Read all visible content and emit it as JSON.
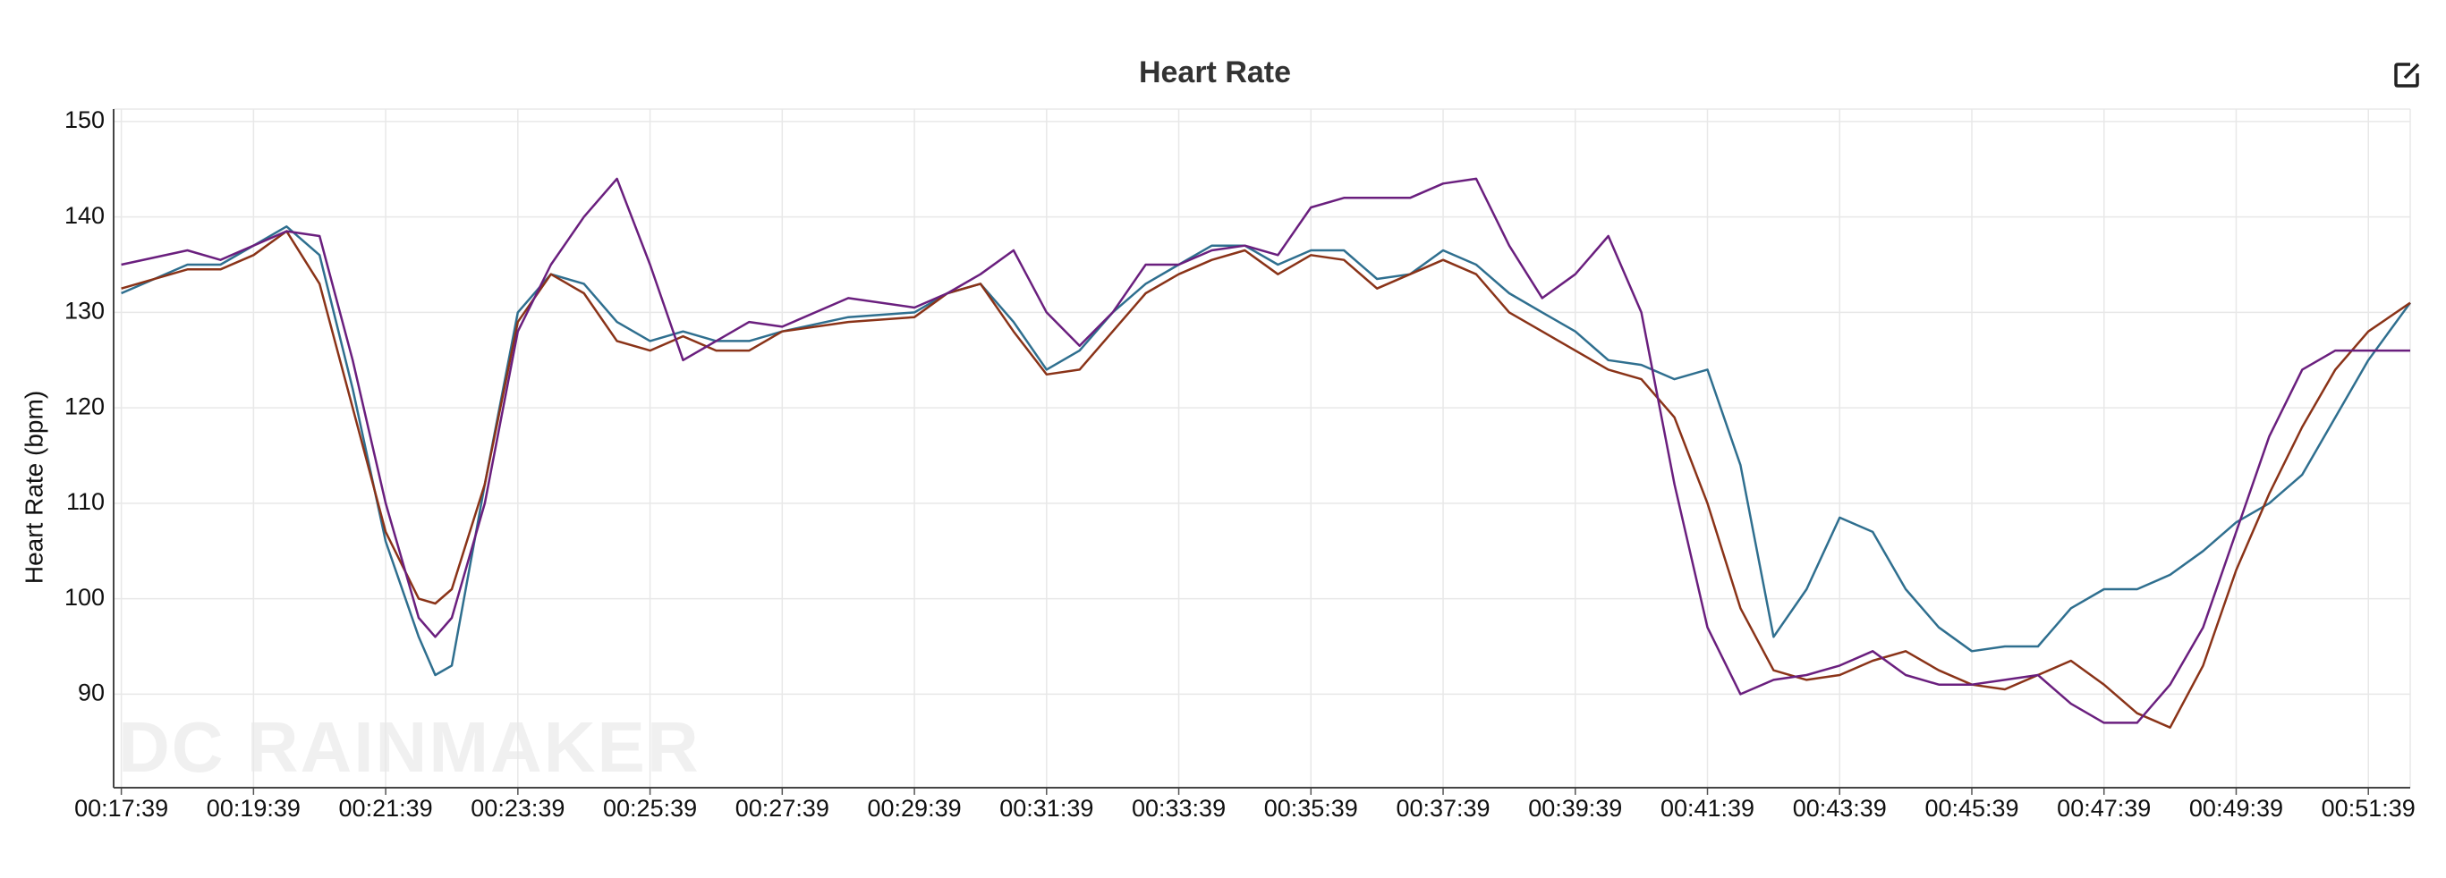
{
  "chart_data": {
    "type": "line",
    "title": "Heart Rate",
    "y_label": "Heart Rate (bpm)",
    "watermark": "DC RAINMAKER",
    "x": [
      1059,
      1119,
      1149,
      1179,
      1209,
      1239,
      1269,
      1299,
      1329,
      1344,
      1359,
      1389,
      1419,
      1449,
      1479,
      1509,
      1539,
      1569,
      1599,
      1629,
      1659,
      1719,
      1779,
      1809,
      1839,
      1869,
      1899,
      1929,
      1959,
      1989,
      2019,
      2049,
      2079,
      2109,
      2139,
      2169,
      2199,
      2229,
      2259,
      2289,
      2319,
      2349,
      2379,
      2409,
      2439,
      2469,
      2499,
      2529,
      2559,
      2589,
      2619,
      2649,
      2679,
      2709,
      2739,
      2769,
      2799,
      2829,
      2859,
      2889,
      2919,
      2949,
      2979,
      3009,
      3039,
      3069,
      3099,
      3137
    ],
    "series": [
      {
        "color": "#2f6f8f",
        "values": [
          132,
          135,
          135,
          137,
          139,
          136,
          122,
          106,
          96,
          92,
          93,
          112,
          130,
          134,
          133,
          129,
          127,
          128,
          127,
          127,
          128,
          129.5,
          130,
          132,
          133,
          129,
          124,
          126,
          130,
          133,
          135,
          137,
          137,
          135,
          136.5,
          136.5,
          133.5,
          134,
          136.5,
          135,
          132,
          130,
          128,
          125,
          124.5,
          123,
          124,
          114,
          96,
          101,
          108.5,
          107,
          101,
          97,
          94.5,
          95,
          95,
          99,
          101,
          101,
          102.5,
          105,
          108,
          110,
          113,
          119,
          125,
          131
        ]
      },
      {
        "color": "#8a3318",
        "values": [
          132.5,
          134.5,
          134.5,
          136,
          138.5,
          133,
          120,
          107,
          100,
          99.5,
          101,
          112,
          129,
          134,
          132,
          127,
          126,
          127.5,
          126,
          126,
          128,
          129,
          129.5,
          132,
          133,
          128,
          123.5,
          124,
          128,
          132,
          134,
          135.5,
          136.5,
          134,
          136,
          135.5,
          132.5,
          134,
          135.5,
          134,
          130,
          128,
          126,
          124,
          123,
          119,
          110,
          99,
          92.5,
          91.5,
          92,
          93.5,
          94.5,
          92.5,
          91,
          90.5,
          92,
          93.5,
          91,
          88,
          86.5,
          93,
          103,
          111,
          118,
          124,
          128,
          131
        ]
      },
      {
        "color": "#6a1f7e",
        "values": [
          135,
          136.5,
          135.5,
          137,
          138.5,
          138,
          125,
          110,
          98,
          96,
          98,
          110,
          128,
          135,
          140,
          144,
          135,
          125,
          127,
          129,
          128.5,
          131.5,
          130.5,
          132,
          134,
          136.5,
          130,
          126.5,
          130,
          135,
          135,
          136.5,
          137,
          136,
          141,
          142,
          142,
          142,
          143.5,
          144,
          137,
          131.5,
          134,
          138,
          130,
          112,
          97,
          90,
          91.5,
          92,
          93,
          94.5,
          92,
          91,
          91,
          91.5,
          92,
          89,
          87,
          87,
          91,
          97,
          107,
          117,
          124,
          126,
          126,
          126
        ]
      }
    ],
    "xlim": [
      1052,
      3137
    ],
    "ylim": [
      80.2,
      151.3
    ],
    "yticks": [
      90,
      100,
      110,
      120,
      130,
      140,
      150
    ],
    "xticks": [
      {
        "value": 1059,
        "label": "00:17:39"
      },
      {
        "value": 1179,
        "label": "00:19:39"
      },
      {
        "value": 1299,
        "label": "00:21:39"
      },
      {
        "value": 1419,
        "label": "00:23:39"
      },
      {
        "value": 1539,
        "label": "00:25:39"
      },
      {
        "value": 1659,
        "label": "00:27:39"
      },
      {
        "value": 1779,
        "label": "00:29:39"
      },
      {
        "value": 1899,
        "label": "00:31:39"
      },
      {
        "value": 2019,
        "label": "00:33:39"
      },
      {
        "value": 2139,
        "label": "00:35:39"
      },
      {
        "value": 2259,
        "label": "00:37:39"
      },
      {
        "value": 2379,
        "label": "00:39:39"
      },
      {
        "value": 2499,
        "label": "00:41:39"
      },
      {
        "value": 2619,
        "label": "00:43:39"
      },
      {
        "value": 2739,
        "label": "00:45:39"
      },
      {
        "value": 2859,
        "label": "00:47:39"
      },
      {
        "value": 2979,
        "label": "00:49:39"
      },
      {
        "value": 3099,
        "label": "00:51:39"
      }
    ],
    "grid": true
  }
}
